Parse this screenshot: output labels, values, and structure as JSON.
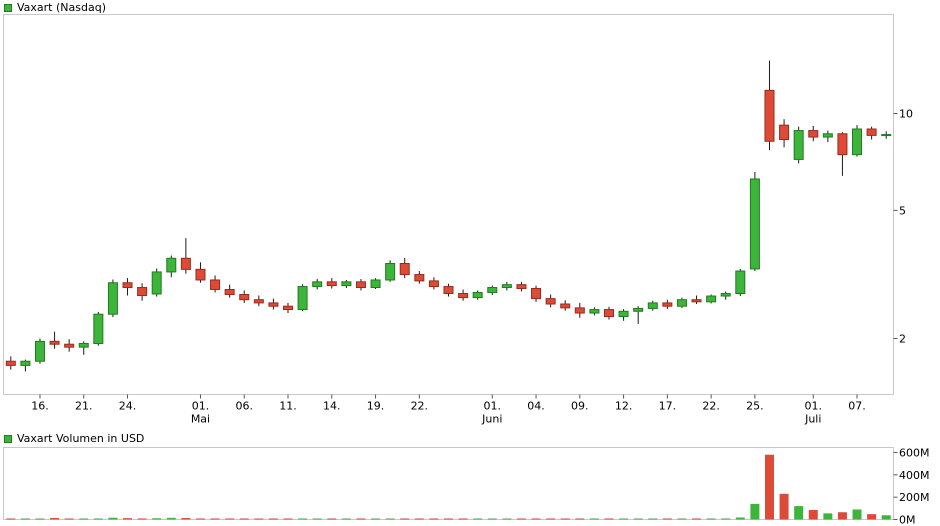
{
  "page": {
    "price_legend": "Vaxart (Nasdaq)",
    "volume_legend": "Vaxart Volumen in USD"
  },
  "colors": {
    "up": "#3db53b",
    "down": "#dd4a38",
    "up_stroke": "#1e7c1e",
    "down_stroke": "#9a2a1c",
    "wick": "#1a1a1a",
    "panel_border": "#c9c9c9",
    "tick": "#555555",
    "legend_swatch": "#3db53b",
    "text": "#000000"
  },
  "chart_data": [
    {
      "type": "candlestick",
      "title": "Vaxart (Nasdaq)",
      "y_scale": "log",
      "ylim": [
        1.34,
        20.3
      ],
      "grid": false,
      "legend_position": "top-left",
      "yticks": [
        {
          "value": 2,
          "label": "2"
        },
        {
          "value": 5,
          "label": "5"
        },
        {
          "value": 10,
          "label": "10"
        }
      ],
      "x_ticks": [
        {
          "index": 2,
          "label": "16."
        },
        {
          "index": 5,
          "label": "21."
        },
        {
          "index": 8,
          "label": "24."
        },
        {
          "index": 13,
          "label": "01."
        },
        {
          "index": 16,
          "label": "06."
        },
        {
          "index": 19,
          "label": "11."
        },
        {
          "index": 22,
          "label": "14."
        },
        {
          "index": 25,
          "label": "19."
        },
        {
          "index": 28,
          "label": "22."
        },
        {
          "index": 33,
          "label": "01."
        },
        {
          "index": 36,
          "label": "04."
        },
        {
          "index": 39,
          "label": "09."
        },
        {
          "index": 42,
          "label": "12."
        },
        {
          "index": 45,
          "label": "17."
        },
        {
          "index": 48,
          "label": "22."
        },
        {
          "index": 51,
          "label": "25."
        },
        {
          "index": 55,
          "label": "01."
        },
        {
          "index": 58,
          "label": "07."
        }
      ],
      "month_labels": [
        {
          "index": 13,
          "label": "Mai"
        },
        {
          "index": 33,
          "label": "Juni"
        },
        {
          "index": 55,
          "label": "Juli"
        }
      ],
      "candles": [
        {
          "date": "14.04",
          "o": 1.7,
          "h": 1.76,
          "l": 1.6,
          "c": 1.65
        },
        {
          "date": "15.04",
          "o": 1.65,
          "h": 1.72,
          "l": 1.58,
          "c": 1.7
        },
        {
          "date": "16.04",
          "o": 1.7,
          "h": 2.0,
          "l": 1.67,
          "c": 1.96
        },
        {
          "date": "17.04",
          "o": 1.96,
          "h": 2.1,
          "l": 1.86,
          "c": 1.92
        },
        {
          "date": "20.04",
          "o": 1.92,
          "h": 1.99,
          "l": 1.82,
          "c": 1.88
        },
        {
          "date": "21.04",
          "o": 1.88,
          "h": 1.96,
          "l": 1.78,
          "c": 1.93
        },
        {
          "date": "22.04",
          "o": 1.93,
          "h": 2.42,
          "l": 1.9,
          "c": 2.38
        },
        {
          "date": "23.04",
          "o": 2.38,
          "h": 3.05,
          "l": 2.33,
          "c": 2.98
        },
        {
          "date": "24.04",
          "o": 2.98,
          "h": 3.08,
          "l": 2.72,
          "c": 2.88
        },
        {
          "date": "27.04",
          "o": 2.88,
          "h": 2.97,
          "l": 2.62,
          "c": 2.72
        },
        {
          "date": "28.04",
          "o": 2.75,
          "h": 3.3,
          "l": 2.7,
          "c": 3.22
        },
        {
          "date": "29.04",
          "o": 3.22,
          "h": 3.62,
          "l": 3.1,
          "c": 3.55
        },
        {
          "date": "30.04",
          "o": 3.55,
          "h": 4.1,
          "l": 3.18,
          "c": 3.28
        },
        {
          "date": "01.05",
          "o": 3.28,
          "h": 3.45,
          "l": 2.98,
          "c": 3.04
        },
        {
          "date": "04.05",
          "o": 3.04,
          "h": 3.14,
          "l": 2.78,
          "c": 2.84
        },
        {
          "date": "05.05",
          "o": 2.84,
          "h": 2.94,
          "l": 2.68,
          "c": 2.74
        },
        {
          "date": "06.05",
          "o": 2.74,
          "h": 2.82,
          "l": 2.58,
          "c": 2.64
        },
        {
          "date": "07.05",
          "o": 2.64,
          "h": 2.72,
          "l": 2.52,
          "c": 2.58
        },
        {
          "date": "08.05",
          "o": 2.58,
          "h": 2.66,
          "l": 2.46,
          "c": 2.52
        },
        {
          "date": "11.05",
          "o": 2.52,
          "h": 2.58,
          "l": 2.4,
          "c": 2.46
        },
        {
          "date": "12.05",
          "o": 2.46,
          "h": 2.95,
          "l": 2.43,
          "c": 2.9
        },
        {
          "date": "13.05",
          "o": 2.9,
          "h": 3.06,
          "l": 2.84,
          "c": 3.0
        },
        {
          "date": "14.05",
          "o": 3.0,
          "h": 3.08,
          "l": 2.86,
          "c": 2.92
        },
        {
          "date": "15.05",
          "o": 2.92,
          "h": 3.04,
          "l": 2.87,
          "c": 3.0
        },
        {
          "date": "18.05",
          "o": 3.0,
          "h": 3.06,
          "l": 2.82,
          "c": 2.88
        },
        {
          "date": "19.05",
          "o": 2.88,
          "h": 3.08,
          "l": 2.85,
          "c": 3.04
        },
        {
          "date": "20.05",
          "o": 3.04,
          "h": 3.5,
          "l": 3.0,
          "c": 3.42
        },
        {
          "date": "21.05",
          "o": 3.42,
          "h": 3.56,
          "l": 3.08,
          "c": 3.16
        },
        {
          "date": "22.05",
          "o": 3.16,
          "h": 3.24,
          "l": 2.96,
          "c": 3.02
        },
        {
          "date": "26.05",
          "o": 3.02,
          "h": 3.1,
          "l": 2.84,
          "c": 2.9
        },
        {
          "date": "27.05",
          "o": 2.9,
          "h": 2.96,
          "l": 2.7,
          "c": 2.76
        },
        {
          "date": "28.05",
          "o": 2.76,
          "h": 2.84,
          "l": 2.62,
          "c": 2.68
        },
        {
          "date": "29.05",
          "o": 2.68,
          "h": 2.82,
          "l": 2.64,
          "c": 2.78
        },
        {
          "date": "01.06",
          "o": 2.78,
          "h": 2.92,
          "l": 2.73,
          "c": 2.88
        },
        {
          "date": "02.06",
          "o": 2.88,
          "h": 3.0,
          "l": 2.82,
          "c": 2.94
        },
        {
          "date": "03.06",
          "o": 2.94,
          "h": 3.0,
          "l": 2.8,
          "c": 2.86
        },
        {
          "date": "04.06",
          "o": 2.86,
          "h": 2.92,
          "l": 2.6,
          "c": 2.66
        },
        {
          "date": "05.06",
          "o": 2.66,
          "h": 2.74,
          "l": 2.5,
          "c": 2.56
        },
        {
          "date": "08.06",
          "o": 2.56,
          "h": 2.63,
          "l": 2.44,
          "c": 2.49
        },
        {
          "date": "09.06",
          "o": 2.49,
          "h": 2.58,
          "l": 2.32,
          "c": 2.4
        },
        {
          "date": "10.06",
          "o": 2.4,
          "h": 2.5,
          "l": 2.36,
          "c": 2.46
        },
        {
          "date": "11.06",
          "o": 2.46,
          "h": 2.51,
          "l": 2.29,
          "c": 2.34
        },
        {
          "date": "12.06",
          "o": 2.34,
          "h": 2.47,
          "l": 2.27,
          "c": 2.43
        },
        {
          "date": "15.06",
          "o": 2.43,
          "h": 2.52,
          "l": 2.22,
          "c": 2.48
        },
        {
          "date": "16.06",
          "o": 2.48,
          "h": 2.62,
          "l": 2.44,
          "c": 2.58
        },
        {
          "date": "17.06",
          "o": 2.58,
          "h": 2.64,
          "l": 2.47,
          "c": 2.52
        },
        {
          "date": "18.06",
          "o": 2.52,
          "h": 2.68,
          "l": 2.49,
          "c": 2.64
        },
        {
          "date": "19.06",
          "o": 2.64,
          "h": 2.72,
          "l": 2.56,
          "c": 2.6
        },
        {
          "date": "22.06",
          "o": 2.6,
          "h": 2.74,
          "l": 2.57,
          "c": 2.71
        },
        {
          "date": "23.06",
          "o": 2.71,
          "h": 2.8,
          "l": 2.64,
          "c": 2.76
        },
        {
          "date": "24.06",
          "o": 2.76,
          "h": 3.29,
          "l": 2.71,
          "c": 3.24
        },
        {
          "date": "25.06",
          "o": 3.29,
          "h": 6.58,
          "l": 3.24,
          "c": 6.26
        },
        {
          "date": "26.06",
          "o": 11.8,
          "h": 14.6,
          "l": 7.7,
          "c": 8.2
        },
        {
          "date": "29.06",
          "o": 9.2,
          "h": 9.6,
          "l": 7.85,
          "c": 8.3
        },
        {
          "date": "30.06",
          "o": 7.2,
          "h": 9.1,
          "l": 7.0,
          "c": 8.85
        },
        {
          "date": "01.07",
          "o": 8.85,
          "h": 9.15,
          "l": 8.2,
          "c": 8.45
        },
        {
          "date": "02.07",
          "o": 8.45,
          "h": 8.85,
          "l": 8.15,
          "c": 8.65
        },
        {
          "date": "06.07",
          "o": 8.65,
          "h": 8.75,
          "l": 6.4,
          "c": 7.45
        },
        {
          "date": "07.07",
          "o": 7.45,
          "h": 9.2,
          "l": 7.35,
          "c": 8.95
        },
        {
          "date": "08.07",
          "o": 8.95,
          "h": 9.1,
          "l": 8.3,
          "c": 8.55
        },
        {
          "date": "09.07",
          "o": 8.55,
          "h": 8.8,
          "l": 8.35,
          "c": 8.6
        }
      ]
    },
    {
      "type": "bar",
      "title": "Vaxart Volumen in USD",
      "unit": "USD millions",
      "ylim": [
        0,
        645
      ],
      "grid": false,
      "yticks": [
        {
          "value": 600,
          "label": "600M"
        },
        {
          "value": 400,
          "label": "400M"
        },
        {
          "value": 200,
          "label": "200M"
        },
        {
          "value": 0,
          "label": "0M"
        }
      ],
      "values_musd": [
        3,
        2,
        9,
        13,
        5,
        4,
        9,
        16,
        12,
        8,
        11,
        15,
        13,
        8,
        5,
        4,
        4,
        3,
        3,
        3,
        9,
        6,
        5,
        4,
        4,
        4,
        9,
        7,
        5,
        4,
        3,
        3,
        3,
        4,
        5,
        4,
        4,
        3,
        3,
        4,
        3,
        3,
        3,
        4,
        5,
        3,
        4,
        4,
        4,
        4,
        18,
        140,
        580,
        230,
        120,
        85,
        55,
        65,
        90,
        48,
        38
      ]
    }
  ]
}
